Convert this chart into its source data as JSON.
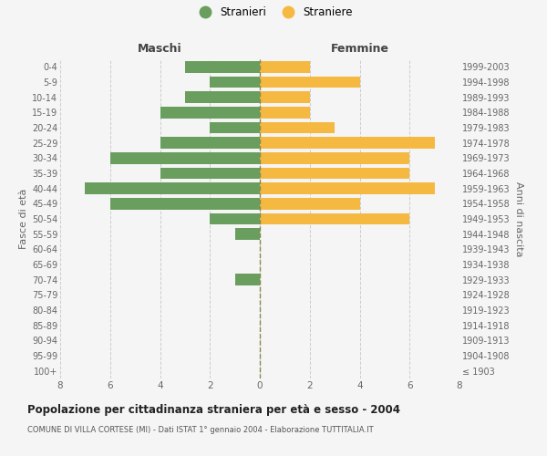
{
  "age_groups": [
    "100+",
    "95-99",
    "90-94",
    "85-89",
    "80-84",
    "75-79",
    "70-74",
    "65-69",
    "60-64",
    "55-59",
    "50-54",
    "45-49",
    "40-44",
    "35-39",
    "30-34",
    "25-29",
    "20-24",
    "15-19",
    "10-14",
    "5-9",
    "0-4"
  ],
  "birth_years": [
    "≤ 1903",
    "1904-1908",
    "1909-1913",
    "1914-1918",
    "1919-1923",
    "1924-1928",
    "1929-1933",
    "1934-1938",
    "1939-1943",
    "1944-1948",
    "1949-1953",
    "1954-1958",
    "1959-1963",
    "1964-1968",
    "1969-1973",
    "1974-1978",
    "1979-1983",
    "1984-1988",
    "1989-1993",
    "1994-1998",
    "1999-2003"
  ],
  "maschi": [
    0,
    0,
    0,
    0,
    0,
    0,
    1,
    0,
    0,
    1,
    2,
    6,
    7,
    4,
    6,
    4,
    2,
    4,
    3,
    2,
    3
  ],
  "femmine": [
    0,
    0,
    0,
    0,
    0,
    0,
    0,
    0,
    0,
    0,
    6,
    4,
    7,
    6,
    6,
    7,
    3,
    2,
    2,
    4,
    2
  ],
  "color_maschi": "#6a9e5e",
  "color_femmine": "#f5b942",
  "color_center_line": "#8b8b4e",
  "bg_color": "#f5f5f5",
  "title_main": "Popolazione per cittadinanza straniera per età e sesso - 2004",
  "title_sub": "COMUNE DI VILLA CORTESE (MI) - Dati ISTAT 1° gennaio 2004 - Elaborazione TUTTITALIA.IT",
  "label_maschi": "Maschi",
  "label_femmine": "Femmine",
  "ylabel_left": "Fasce di età",
  "ylabel_right": "Anni di nascita",
  "legend_maschi": "Stranieri",
  "legend_femmine": "Straniere",
  "xlim": 8,
  "grid_color": "#cccccc",
  "bar_height": 0.75
}
